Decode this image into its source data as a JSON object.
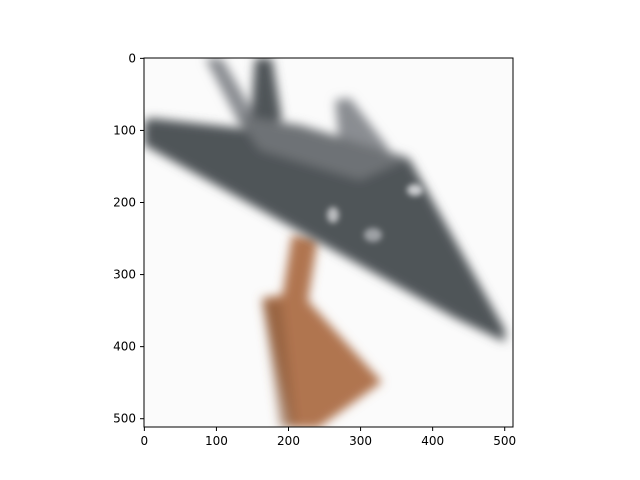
{
  "figure": {
    "image_subject": "stealth-aircraft-model-on-stand",
    "colors": {
      "aircraft": "#505458",
      "aircraft_light": "#8a8d92",
      "stand": "#b07550",
      "stand_dark": "#8a5a3a",
      "background": "#fbfbfb"
    }
  },
  "axes": {
    "x_ticks": [
      "0",
      "100",
      "200",
      "300",
      "400",
      "500"
    ],
    "y_ticks": [
      "0",
      "100",
      "200",
      "300",
      "400",
      "500"
    ]
  }
}
